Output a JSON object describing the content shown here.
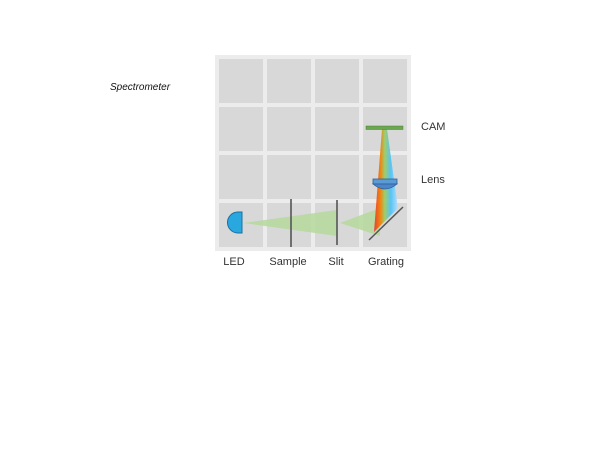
{
  "diagram": {
    "title": "Spectrometer",
    "labels": {
      "led": "LED",
      "sample": "Sample",
      "slit": "Slit",
      "grating": "Grating",
      "camera": "CAM",
      "lens": "Lens"
    },
    "colors": {
      "background_panel": "#ececec",
      "grid_cell": "#d8d8d8",
      "led": "#29a8e0",
      "beam": "#b5d99c",
      "camera_bar": "#6aa84f",
      "lens": "#4a86c8",
      "optics_line": "#555555"
    }
  }
}
